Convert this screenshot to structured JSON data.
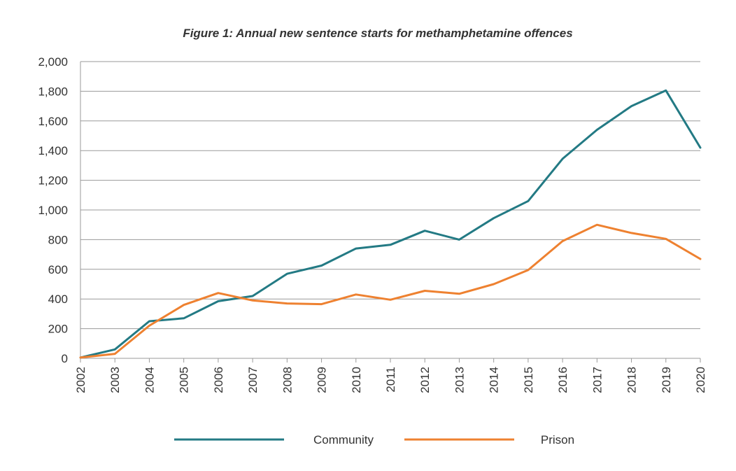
{
  "chart_data": {
    "type": "line",
    "title": "Figure 1: Annual new sentence starts for methamphetamine offences",
    "xlabel": "",
    "ylabel": "",
    "categories": [
      "2002",
      "2003",
      "2004",
      "2005",
      "2006",
      "2007",
      "2008",
      "2009",
      "2010",
      "2011",
      "2012",
      "2013",
      "2014",
      "2015",
      "2016",
      "2017",
      "2018",
      "2019",
      "2020"
    ],
    "ylim": [
      0,
      2000
    ],
    "yticks": [
      0,
      200,
      400,
      600,
      800,
      1000,
      1200,
      1400,
      1600,
      1800,
      2000
    ],
    "ytick_labels": [
      "0",
      "200",
      "400",
      "600",
      "800",
      "1,000",
      "1,200",
      "1,400",
      "1,600",
      "1,800",
      "2,000"
    ],
    "grid": "horizontal",
    "legend_position": "bottom",
    "series": [
      {
        "name": "Community",
        "color": "#237a84",
        "values": [
          5,
          60,
          250,
          270,
          385,
          420,
          570,
          625,
          740,
          765,
          860,
          800,
          945,
          1060,
          1345,
          1540,
          1700,
          1805,
          1420
        ]
      },
      {
        "name": "Prison",
        "color": "#ee8130",
        "values": [
          5,
          30,
          220,
          360,
          440,
          390,
          370,
          365,
          430,
          395,
          455,
          435,
          500,
          595,
          790,
          900,
          845,
          805,
          670
        ]
      }
    ]
  }
}
